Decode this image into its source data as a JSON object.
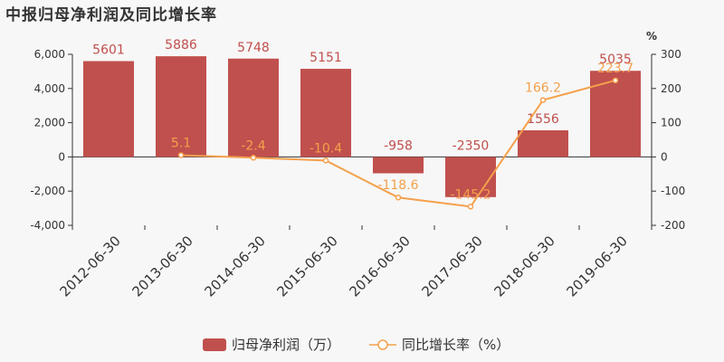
{
  "title": "中报归母净利润及同比增长率",
  "chart_data": {
    "type": "bar",
    "categories": [
      "2012-06-30",
      "2013-06-30",
      "2014-06-30",
      "2015-06-30",
      "2016-06-30",
      "2017-06-30",
      "2018-06-30",
      "2019-06-30"
    ],
    "series": [
      {
        "name": "归母净利润（万）",
        "type": "bar",
        "axis": "left",
        "color": "#c0504d",
        "values": [
          5601,
          5886,
          5748,
          5151,
          -958,
          -2350,
          1556,
          5035
        ],
        "labels": [
          "5601",
          "5886",
          "5748",
          "5151",
          "-958",
          "-2350",
          "1556",
          "5035"
        ]
      },
      {
        "name": "同比增长率（%）",
        "type": "line",
        "axis": "right",
        "color": "#f4a04c",
        "values": [
          null,
          5.1,
          -2.4,
          -10.4,
          -118.6,
          -145.2,
          166.2,
          223.7
        ],
        "labels": [
          "",
          "5.1",
          "-2.4",
          "-10.4",
          "-118.6",
          "-145.2",
          "166.2",
          "223.7"
        ]
      }
    ],
    "y_left": {
      "ylim": [
        -4000,
        6000
      ],
      "ticks": [
        -4000,
        -2000,
        0,
        2000,
        4000,
        6000
      ],
      "tick_labels": [
        "-4,000",
        "-2,000",
        "0",
        "2,000",
        "4,000",
        "6,000"
      ]
    },
    "y_right": {
      "unit": "%",
      "ylim": [
        -200,
        300
      ],
      "ticks": [
        -200,
        -100,
        0,
        100,
        200,
        300
      ],
      "tick_labels": [
        "-200",
        "-100",
        "0",
        "100",
        "200",
        "300"
      ]
    },
    "legend": {
      "position": "bottom"
    },
    "grid": false
  }
}
